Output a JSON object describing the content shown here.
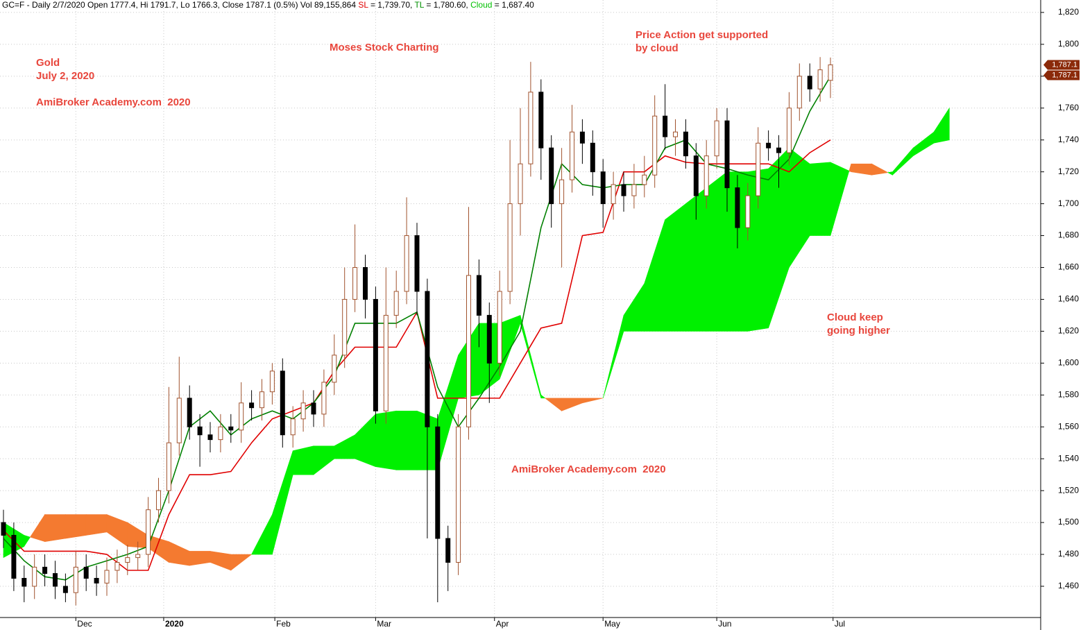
{
  "chart_data": {
    "type": "candlestick",
    "header": {
      "symbol_text": "GC=F - Daily 2/7/2020 Open 1777.4, Hi 1791.7, Lo 1766.3, Close 1787.1 (0.5%) Vol 89,155,864",
      "sl_label": "SL",
      "sl_value": "= 1,739.70,",
      "tl_label": "TL",
      "tl_value": "= 1,780.60,",
      "cloud_label": "Cloud",
      "cloud_value": "= 1,687.40"
    },
    "annotations": [
      "Gold",
      "July 2, 2020",
      "AmiBroker Academy.com  2020",
      "Moses Stock Charting",
      "Price Action get supported",
      "by cloud",
      "Cloud keep",
      "going higher",
      "AmiBroker Academy.com  2020"
    ],
    "x": [
      0,
      2,
      4,
      6,
      8,
      10,
      12,
      14,
      16,
      18,
      20,
      22,
      24,
      26,
      28,
      30,
      32,
      34,
      36,
      38,
      40,
      42,
      44,
      46,
      48,
      50,
      52,
      54,
      56,
      58,
      60,
      62,
      64,
      66,
      68,
      70,
      72,
      74,
      76,
      78,
      80,
      82,
      84,
      86,
      88,
      90,
      92,
      94,
      96,
      98,
      100,
      102,
      104,
      106,
      108,
      110,
      112,
      114,
      116,
      118,
      120,
      122,
      124,
      126,
      128,
      130,
      132,
      134,
      136,
      138,
      140,
      142,
      144,
      146,
      148,
      150,
      152,
      154,
      156,
      158,
      160
    ],
    "open": [
      1500,
      1492,
      1465,
      1460,
      1472,
      1468,
      1460,
      1456,
      1472,
      1465,
      1462,
      1470,
      1475,
      1478,
      1480,
      1508,
      1520,
      1550,
      1578,
      1560,
      1555,
      1552,
      1560,
      1558,
      1575,
      1572,
      1582,
      1595,
      1555,
      1565,
      1575,
      1568,
      1588,
      1605,
      1640,
      1660,
      1640,
      1570,
      1630,
      1645,
      1680,
      1645,
      1560,
      1490,
      1475,
      1560,
      1655,
      1630,
      1600,
      1645,
      1700,
      1725,
      1770,
      1735,
      1700,
      1715,
      1745,
      1738,
      1720,
      1700,
      1712,
      1705,
      1712,
      1718,
      1755,
      1742,
      1745,
      1730,
      1705,
      1730,
      1752,
      1710,
      1685,
      1705,
      1738,
      1735,
      1732,
      1760,
      1780,
      1772,
      1777.4
    ],
    "high": [
      1508,
      1500,
      1473,
      1480,
      1480,
      1476,
      1468,
      1482,
      1480,
      1473,
      1478,
      1483,
      1486,
      1488,
      1516,
      1528,
      1585,
      1604,
      1586,
      1568,
      1563,
      1568,
      1568,
      1588,
      1583,
      1590,
      1600,
      1603,
      1573,
      1583,
      1583,
      1596,
      1618,
      1660,
      1687,
      1668,
      1648,
      1660,
      1658,
      1704,
      1688,
      1653,
      1568,
      1498,
      1568,
      1698,
      1665,
      1638,
      1658,
      1740,
      1760,
      1789,
      1778,
      1743,
      1735,
      1762,
      1753,
      1746,
      1728,
      1720,
      1720,
      1725,
      1730,
      1768,
      1775,
      1753,
      1753,
      1738,
      1740,
      1760,
      1760,
      1718,
      1713,
      1748,
      1746,
      1743,
      1770,
      1788,
      1788,
      1792,
      1791.7
    ],
    "low": [
      1484,
      1457,
      1450,
      1452,
      1460,
      1452,
      1450,
      1448,
      1457,
      1454,
      1454,
      1462,
      1467,
      1470,
      1472,
      1500,
      1512,
      1542,
      1552,
      1535,
      1544,
      1544,
      1550,
      1550,
      1564,
      1564,
      1574,
      1547,
      1547,
      1557,
      1560,
      1560,
      1580,
      1597,
      1632,
      1628,
      1562,
      1562,
      1622,
      1637,
      1630,
      1490,
      1450,
      1457,
      1467,
      1552,
      1610,
      1575,
      1592,
      1637,
      1680,
      1717,
      1715,
      1685,
      1660,
      1707,
      1725,
      1705,
      1685,
      1690,
      1695,
      1697,
      1704,
      1710,
      1734,
      1730,
      1722,
      1690,
      1697,
      1722,
      1695,
      1672,
      1677,
      1697,
      1727,
      1710,
      1724,
      1752,
      1764,
      1764,
      1766.3
    ],
    "close": [
      1492,
      1465,
      1460,
      1472,
      1468,
      1460,
      1456,
      1472,
      1465,
      1462,
      1470,
      1475,
      1478,
      1480,
      1508,
      1520,
      1550,
      1578,
      1560,
      1555,
      1552,
      1560,
      1558,
      1575,
      1572,
      1582,
      1595,
      1555,
      1565,
      1575,
      1568,
      1588,
      1605,
      1640,
      1660,
      1640,
      1570,
      1630,
      1645,
      1680,
      1645,
      1560,
      1490,
      1475,
      1560,
      1655,
      1630,
      1600,
      1645,
      1700,
      1725,
      1770,
      1735,
      1700,
      1715,
      1745,
      1738,
      1720,
      1700,
      1712,
      1705,
      1712,
      1718,
      1755,
      1742,
      1745,
      1730,
      1705,
      1730,
      1752,
      1710,
      1685,
      1705,
      1738,
      1735,
      1732,
      1760,
      1780,
      1772,
      1784,
      1787.1
    ],
    "up_color": "#a0522d",
    "down_color": "#000000",
    "lines": [
      {
        "x": [
          0,
          4,
          8,
          12,
          16,
          20,
          24,
          28,
          32,
          36,
          40,
          44,
          48,
          52,
          56,
          60,
          64,
          68,
          72,
          76,
          80,
          84,
          88,
          92,
          96,
          100,
          104,
          108,
          112,
          116,
          120,
          124,
          128,
          132,
          136,
          140,
          144,
          148,
          152,
          156,
          160
        ],
        "values": [
          1495,
          1482,
          1482,
          1482,
          1482,
          1480,
          1470,
          1470,
          1505,
          1530,
          1530,
          1532,
          1550,
          1565,
          1570,
          1575,
          1595,
          1610,
          1610,
          1610,
          1632,
          1578,
          1578,
          1578,
          1578,
          1600,
          1622,
          1625,
          1680,
          1682,
          1720,
          1720,
          1730,
          1726,
          1725,
          1725,
          1725,
          1725,
          1720,
          1732,
          1740
        ],
        "color": "#e00000"
      },
      {
        "x": [
          0,
          4,
          8,
          12,
          16,
          20,
          24,
          28,
          32,
          36,
          40,
          44,
          48,
          52,
          56,
          60,
          64,
          68,
          72,
          76,
          80,
          84,
          88,
          92,
          96,
          100,
          104,
          108,
          112,
          116,
          120,
          124,
          128,
          132,
          136,
          140,
          144,
          148,
          152,
          156,
          160
        ],
        "values": [
          1490,
          1476,
          1466,
          1464,
          1472,
          1476,
          1480,
          1485,
          1520,
          1560,
          1570,
          1555,
          1565,
          1570,
          1565,
          1575,
          1592,
          1625,
          1625,
          1625,
          1632,
          1585,
          1560,
          1578,
          1598,
          1620,
          1685,
          1725,
          1712,
          1710,
          1712,
          1712,
          1735,
          1740,
          1725,
          1722,
          1718,
          1715,
          1728,
          1758,
          1780
        ],
        "color": "#008000"
      }
    ],
    "cloud": {
      "x": [
        0,
        4,
        8,
        12,
        16,
        20,
        24,
        28,
        32,
        36,
        40,
        44,
        48,
        52,
        56,
        60,
        64,
        68,
        72,
        76,
        80,
        84,
        88,
        92,
        96,
        100,
        104,
        108,
        112,
        116,
        120,
        124,
        128,
        132,
        136,
        140,
        144,
        148,
        152,
        156,
        160,
        164,
        168,
        172,
        176,
        180,
        183
      ],
      "span_a": [
        1500,
        1492,
        1488,
        1490,
        1492,
        1494,
        1485,
        1484,
        1475,
        1473,
        1475,
        1470,
        1480,
        1505,
        1545,
        1548,
        1548,
        1555,
        1568,
        1570,
        1570,
        1565,
        1605,
        1625,
        1625,
        1630,
        1580,
        1570,
        1575,
        1578,
        1630,
        1650,
        1690,
        1700,
        1710,
        1720,
        1720,
        1722,
        1735,
        1725,
        1726,
        1720,
        1718,
        1720,
        1735,
        1745,
        1760
      ],
      "span_b": [
        1478,
        1485,
        1505,
        1505,
        1505,
        1505,
        1500,
        1492,
        1488,
        1482,
        1482,
        1480,
        1480,
        1480,
        1530,
        1530,
        1540,
        1540,
        1535,
        1533,
        1533,
        1533,
        1578,
        1580,
        1590,
        1625,
        1578,
        1578,
        1578,
        1578,
        1620,
        1620,
        1620,
        1620,
        1620,
        1620,
        1620,
        1622,
        1660,
        1680,
        1680,
        1725,
        1725,
        1718,
        1730,
        1738,
        1740
      ],
      "up_color": "#00f000",
      "down_color": "#f47a30"
    },
    "xlim": [
      -0.67,
      200.67
    ],
    "ylim": [
      1440.4,
      1827.8
    ],
    "xticks": [
      {
        "value": 14,
        "label": "Dec"
      },
      {
        "value": 31,
        "label": "2020"
      },
      {
        "value": 52.5,
        "label": "Feb"
      },
      {
        "value": 72,
        "label": "Mar"
      },
      {
        "value": 95,
        "label": "Apr"
      },
      {
        "value": 116,
        "label": "May"
      },
      {
        "value": 138,
        "label": "Jun"
      },
      {
        "value": 160.5,
        "label": "Jul"
      }
    ],
    "yticks": [
      {
        "value": 1460,
        "label": "1,460"
      },
      {
        "value": 1480,
        "label": "1,480"
      },
      {
        "value": 1500,
        "label": "1,500"
      },
      {
        "value": 1520,
        "label": "1,520"
      },
      {
        "value": 1540,
        "label": "1,540"
      },
      {
        "value": 1560,
        "label": "1,560"
      },
      {
        "value": 1580,
        "label": "1,580"
      },
      {
        "value": 1600,
        "label": "1,600"
      },
      {
        "value": 1620,
        "label": "1,620"
      },
      {
        "value": 1640,
        "label": "1,640"
      },
      {
        "value": 1660,
        "label": "1,660"
      },
      {
        "value": 1680,
        "label": "1,680"
      },
      {
        "value": 1700,
        "label": "1,700"
      },
      {
        "value": 1720,
        "label": "1,720"
      },
      {
        "value": 1740,
        "label": "1,740"
      },
      {
        "value": 1760,
        "label": "1,760"
      },
      {
        "value": 1780,
        "label": "1,780"
      },
      {
        "value": 1800,
        "label": "1,800"
      },
      {
        "value": 1820,
        "label": "1,820"
      }
    ],
    "grid": true,
    "price_tags": [
      {
        "value": 1787.1,
        "label": "1,787.1"
      },
      {
        "value": 1787.1,
        "label": "1,787.1"
      }
    ],
    "price_tag_color": "#8b2a0a"
  }
}
